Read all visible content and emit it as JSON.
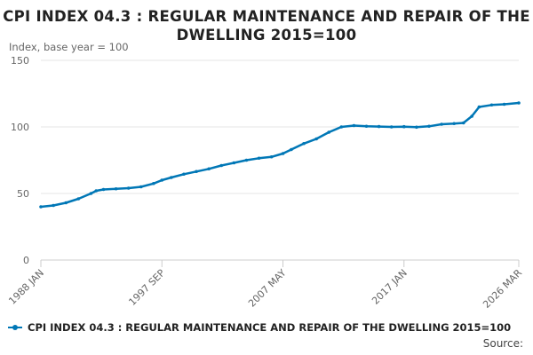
{
  "chart_data": {
    "type": "line",
    "title": "CPI INDEX 04.3 : REGULAR MAINTENANCE AND REPAIR OF THE DWELLING 2015=100",
    "ylabel": "Index, base year = 100",
    "xlabel": "",
    "ylim": [
      0,
      150
    ],
    "yticks": [
      0,
      50,
      100,
      150
    ],
    "xticks": [
      "1988 JAN",
      "1997 SEP",
      "2007 MAY",
      "2017 JAN",
      "2026 MAR"
    ],
    "x_range": [
      "1988 JAN",
      "2026 MAR"
    ],
    "grid": "horizontal",
    "legend_position": "bottom-left",
    "source_label": "Source:",
    "color": "#0077b6",
    "series": [
      {
        "name": "CPI INDEX 04.3 : REGULAR MAINTENANCE AND REPAIR OF THE DWELLING 2015=100",
        "points": [
          [
            "1988 JAN",
            40
          ],
          [
            "1989 JAN",
            41
          ],
          [
            "1990 JAN",
            43
          ],
          [
            "1991 JAN",
            46
          ],
          [
            "1992 JAN",
            50
          ],
          [
            "1992 JUN",
            52
          ],
          [
            "1993 JAN",
            53
          ],
          [
            "1994 JAN",
            53.5
          ],
          [
            "1995 JAN",
            54
          ],
          [
            "1996 JAN",
            55
          ],
          [
            "1997 JAN",
            57.5
          ],
          [
            "1997 SEP",
            60
          ],
          [
            "1998 JUN",
            62
          ],
          [
            "1999 JUN",
            64.5
          ],
          [
            "2000 JUN",
            66.5
          ],
          [
            "2001 JUN",
            68.5
          ],
          [
            "2002 JUN",
            71
          ],
          [
            "2003 JUN",
            73
          ],
          [
            "2004 JUN",
            75
          ],
          [
            "2005 JUN",
            76.5
          ],
          [
            "2006 JUN",
            77.5
          ],
          [
            "2007 MAY",
            80
          ],
          [
            "2008 JAN",
            83
          ],
          [
            "2009 JAN",
            87.5
          ],
          [
            "2010 JAN",
            91
          ],
          [
            "2011 JAN",
            96
          ],
          [
            "2012 JAN",
            100
          ],
          [
            "2013 JAN",
            101
          ],
          [
            "2014 JAN",
            100.5
          ],
          [
            "2015 JAN",
            100.3
          ],
          [
            "2016 JAN",
            100
          ],
          [
            "2017 JAN",
            100.2
          ],
          [
            "2018 JAN",
            99.8
          ],
          [
            "2019 JAN",
            100.5
          ],
          [
            "2020 JAN",
            102
          ],
          [
            "2021 JAN",
            102.5
          ],
          [
            "2021 OCT",
            103
          ],
          [
            "2022 JUN",
            108
          ],
          [
            "2023 JAN",
            115
          ],
          [
            "2024 JAN",
            116.5
          ],
          [
            "2025 JAN",
            117
          ],
          [
            "2026 MAR",
            118
          ]
        ]
      }
    ]
  }
}
